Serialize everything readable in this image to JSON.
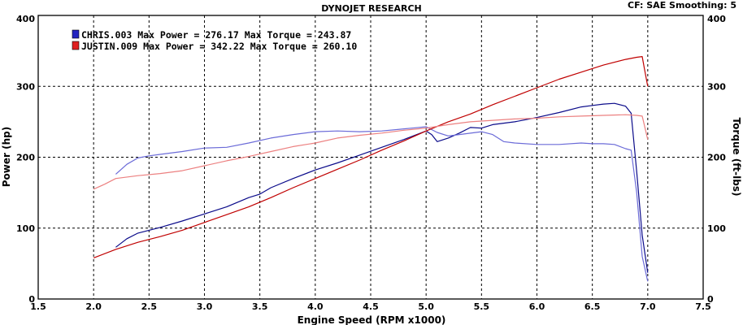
{
  "header": {
    "title": "DYNOJET RESEARCH",
    "cf_info": "CF: SAE  Smoothing: 5"
  },
  "chart_data": {
    "type": "line",
    "title": "DYNOJET RESEARCH",
    "xlabel": "Engine Speed (RPM x1000)",
    "ylabel_left": "Power (hp)",
    "ylabel_right": "Torque (ft-lbs)",
    "xlim": [
      1.5,
      7.5
    ],
    "ylim": [
      0,
      400
    ],
    "x_ticks": [
      "1.5",
      "2.0",
      "2.5",
      "3.0",
      "3.5",
      "4.0",
      "4.5",
      "5.0",
      "5.5",
      "6.0",
      "6.5",
      "7.0",
      "7.5"
    ],
    "y_ticks": [
      "0",
      "100",
      "200",
      "300",
      "400"
    ],
    "grid": true,
    "legend_position": "top-left",
    "legend": [
      {
        "text": "CHRIS.003 Max Power = 276.17     Max Torque = 243.87",
        "color": "#0000a0"
      },
      {
        "text": "JUSTIN.009 Max Power = 342.22     Max Torque = 260.10",
        "color": "#d00000"
      }
    ],
    "series": [
      {
        "name": "CHRIS.003",
        "kind": "power",
        "color": "#0b0b8a",
        "x": [
          2.2,
          2.3,
          2.4,
          2.5,
          2.6,
          2.8,
          3.0,
          3.2,
          3.4,
          3.5,
          3.6,
          3.8,
          4.0,
          4.2,
          4.4,
          4.6,
          4.8,
          5.0,
          5.05,
          5.1,
          5.2,
          5.3,
          5.4,
          5.5,
          5.6,
          5.8,
          6.0,
          6.2,
          6.4,
          6.5,
          6.6,
          6.7,
          6.8,
          6.85,
          6.9,
          6.95,
          7.0
        ],
        "y": [
          73,
          85,
          93,
          97,
          101,
          110,
          120,
          130,
          143,
          148,
          157,
          170,
          182,
          192,
          203,
          214,
          225,
          237,
          232,
          222,
          227,
          234,
          242,
          241,
          246,
          250,
          256,
          263,
          271,
          273,
          275,
          276,
          272,
          262,
          180,
          90,
          37
        ]
      },
      {
        "name": "CHRIS.003",
        "kind": "torque",
        "color": "#6b6bd8",
        "x": [
          2.2,
          2.3,
          2.4,
          2.5,
          2.6,
          2.8,
          3.0,
          3.2,
          3.4,
          3.6,
          3.8,
          4.0,
          4.2,
          4.4,
          4.6,
          4.8,
          5.0,
          5.1,
          5.2,
          5.3,
          5.5,
          5.6,
          5.7,
          5.8,
          6.0,
          6.2,
          6.4,
          6.5,
          6.6,
          6.7,
          6.8,
          6.85,
          6.9,
          6.95,
          7.0
        ],
        "y": [
          176,
          190,
          199,
          202,
          204,
          208,
          213,
          214,
          220,
          227,
          232,
          236,
          237,
          236,
          237,
          240,
          243,
          235,
          230,
          232,
          236,
          232,
          222,
          220,
          218,
          218,
          220,
          219,
          219,
          218,
          212,
          210,
          150,
          60,
          25
        ]
      },
      {
        "name": "JUSTIN.009",
        "kind": "power",
        "color": "#c00000",
        "x": [
          2.0,
          2.2,
          2.4,
          2.6,
          2.8,
          3.0,
          3.2,
          3.4,
          3.6,
          3.8,
          4.0,
          4.2,
          4.4,
          4.6,
          4.8,
          5.0,
          5.2,
          5.4,
          5.6,
          5.8,
          6.0,
          6.2,
          6.4,
          6.6,
          6.8,
          6.9,
          6.95,
          6.97,
          7.0
        ],
        "y": [
          58,
          70,
          80,
          88,
          97,
          108,
          119,
          130,
          143,
          157,
          170,
          183,
          196,
          210,
          223,
          237,
          250,
          261,
          274,
          286,
          298,
          310,
          320,
          330,
          338,
          341,
          342,
          325,
          300
        ]
      },
      {
        "name": "JUSTIN.009",
        "kind": "torque",
        "color": "#ec8080",
        "x": [
          2.0,
          2.1,
          2.2,
          2.4,
          2.6,
          2.8,
          3.0,
          3.2,
          3.4,
          3.6,
          3.8,
          4.0,
          4.2,
          4.4,
          4.6,
          4.8,
          5.0,
          5.2,
          5.4,
          5.6,
          5.8,
          6.0,
          6.2,
          6.4,
          6.6,
          6.8,
          6.9,
          6.95,
          6.97,
          7.0
        ],
        "y": [
          155,
          162,
          170,
          174,
          177,
          181,
          188,
          195,
          201,
          208,
          215,
          220,
          227,
          231,
          234,
          238,
          241,
          246,
          250,
          252,
          254,
          255,
          257,
          258,
          259,
          260,
          259,
          258,
          245,
          225
        ]
      }
    ]
  }
}
